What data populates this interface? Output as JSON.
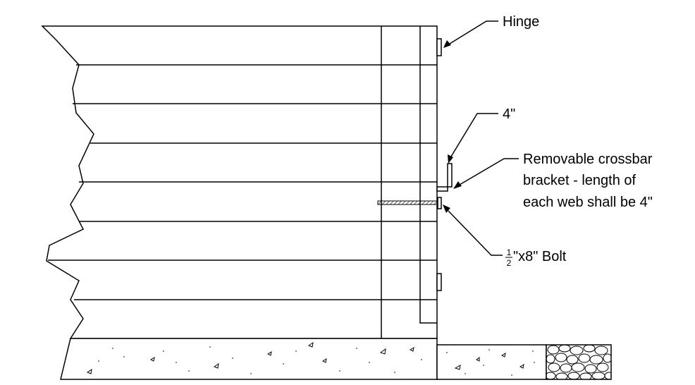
{
  "labels": {
    "hinge": "Hinge",
    "dimension": "4\"",
    "bracket_line1": "Removable crossbar",
    "bracket_line2": "bracket - length of",
    "bracket_line3": "each web shall be 4\"",
    "bolt_num": "1",
    "bolt_den": "2",
    "bolt_rest": "\"x8\" Bolt"
  },
  "colors": {
    "line": "#000000",
    "background": "#ffffff"
  }
}
